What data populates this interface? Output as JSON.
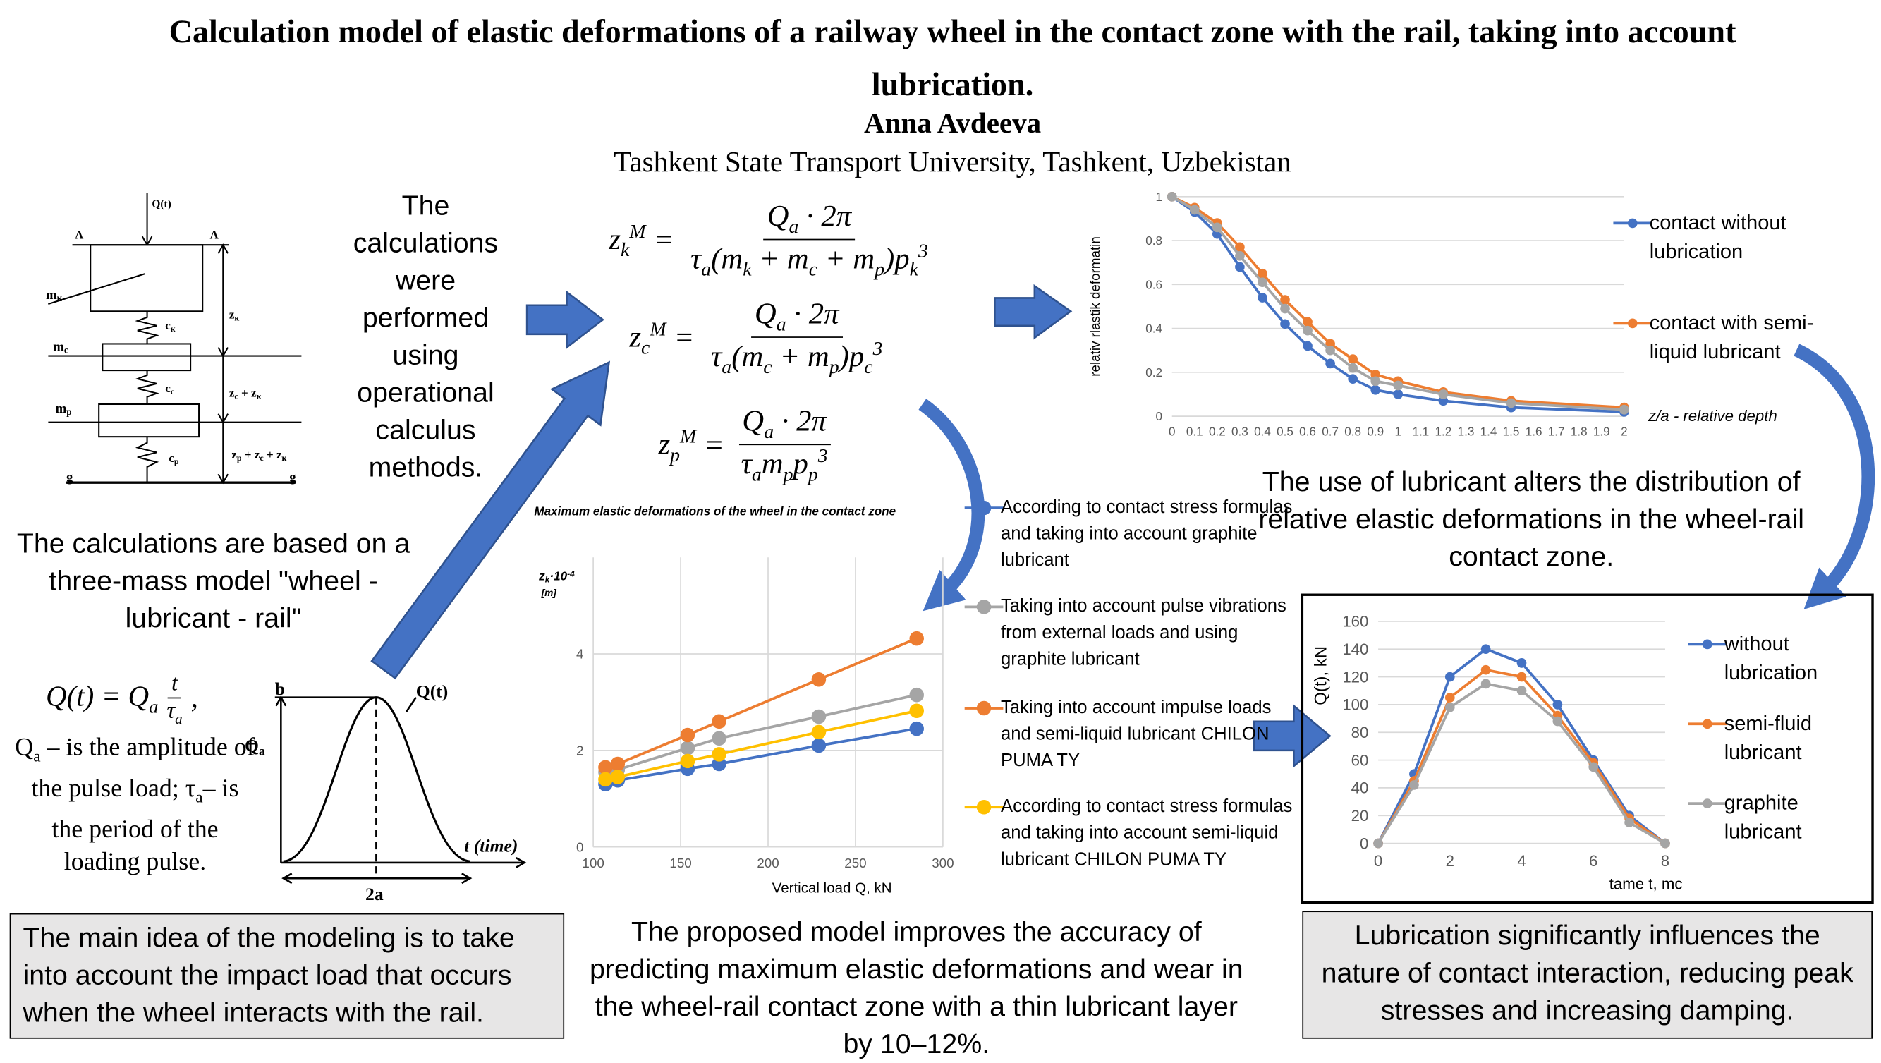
{
  "header": {
    "title": "Calculation model of elastic deformations of a railway wheel in the contact zone with the rail, taking into account lubrication.",
    "author": "Anna Avdeeva",
    "affiliation": "Tashkent State Transport University, Tashkent, Uzbekistan"
  },
  "diagram": {
    "labels": [
      [
        {
          "t": "Q(t)"
        }
      ],
      [
        {
          "t": "A"
        }
      ],
      [
        {
          "t": "A"
        }
      ],
      [
        {
          "t": "m"
        },
        {
          "t": "к",
          "s": "sub"
        }
      ],
      [
        {
          "t": "c"
        },
        {
          "t": "к",
          "s": "sub"
        }
      ],
      [
        {
          "t": "z"
        },
        {
          "t": "к",
          "s": "sub"
        }
      ],
      [
        {
          "t": "m"
        },
        {
          "t": "c",
          "s": "sub"
        }
      ],
      [
        {
          "t": "c"
        },
        {
          "t": "c",
          "s": "sub"
        }
      ],
      [
        {
          "t": "z"
        },
        {
          "t": "c",
          "s": "sub"
        },
        {
          "t": " + z"
        },
        {
          "t": "к",
          "s": "sub"
        }
      ],
      [
        {
          "t": "m"
        },
        {
          "t": "p",
          "s": "sub"
        }
      ],
      [
        {
          "t": "c"
        },
        {
          "t": "p",
          "s": "sub"
        }
      ],
      [
        {
          "t": "z"
        },
        {
          "t": "p",
          "s": "sub"
        },
        {
          "t": " + z"
        },
        {
          "t": "c",
          "s": "sub"
        },
        {
          "t": " + z"
        },
        {
          "t": "к",
          "s": "sub"
        }
      ],
      [
        {
          "t": "g"
        }
      ],
      [
        {
          "t": "g"
        }
      ]
    ]
  },
  "methods_note": "The calculations were performed using operational calculus methods.",
  "model_note": "The calculations are based on a three-mass model \"wheel - lubricant - rail\"",
  "formulas": [
    {
      "lhs": [
        {
          "t": "z"
        },
        {
          "t": "k",
          "s": "sub"
        },
        {
          "t": "M",
          "s": "sup"
        }
      ],
      "eq": "=",
      "num": [
        {
          "t": "Q"
        },
        {
          "t": "a",
          "s": "sub"
        },
        {
          "t": " · 2π"
        }
      ],
      "den": [
        {
          "t": "τ"
        },
        {
          "t": "a",
          "s": "sub"
        },
        {
          "t": "(m"
        },
        {
          "t": "k",
          "s": "sub"
        },
        {
          "t": " + m"
        },
        {
          "t": "c",
          "s": "sub"
        },
        {
          "t": " + m"
        },
        {
          "t": "p",
          "s": "sub"
        },
        {
          "t": ")p"
        },
        {
          "t": "k",
          "s": "sub"
        },
        {
          "t": "3",
          "s": "sup"
        }
      ]
    },
    {
      "lhs": [
        {
          "t": "z"
        },
        {
          "t": "c",
          "s": "sub"
        },
        {
          "t": "M",
          "s": "sup"
        }
      ],
      "eq": "=",
      "num": [
        {
          "t": "Q"
        },
        {
          "t": "a",
          "s": "sub"
        },
        {
          "t": " · 2π"
        }
      ],
      "den": [
        {
          "t": "τ"
        },
        {
          "t": "a",
          "s": "sub"
        },
        {
          "t": "(m"
        },
        {
          "t": "c",
          "s": "sub"
        },
        {
          "t": " + m"
        },
        {
          "t": "p",
          "s": "sub"
        },
        {
          "t": ")p"
        },
        {
          "t": "c",
          "s": "sub"
        },
        {
          "t": "3",
          "s": "sup"
        }
      ]
    },
    {
      "lhs": [
        {
          "t": "z"
        },
        {
          "t": "p",
          "s": "sub"
        },
        {
          "t": "M",
          "s": "sup"
        }
      ],
      "eq": "=",
      "num": [
        {
          "t": "Q"
        },
        {
          "t": "a",
          "s": "sub"
        },
        {
          "t": " · 2π"
        }
      ],
      "den": [
        {
          "t": "τ"
        },
        {
          "t": "a",
          "s": "sub"
        },
        {
          "t": "m"
        },
        {
          "t": "p",
          "s": "sub"
        },
        {
          "t": "p"
        },
        {
          "t": "p",
          "s": "sub"
        },
        {
          "t": "3",
          "s": "sup"
        }
      ]
    }
  ],
  "load_formula": {
    "lhs": [
      {
        "t": "Q(t) = Q"
      },
      {
        "t": "a",
        "s": "sub"
      }
    ],
    "num": [
      {
        "t": "t"
      }
    ],
    "den": [
      {
        "t": "τ"
      },
      {
        "t": "a",
        "s": "sub"
      }
    ],
    "tail": ",",
    "description": [
      {
        "t": "Q"
      },
      {
        "t": "a",
        "s": "sub"
      },
      {
        "t": " – is the amplitude of the pulse load; τ"
      },
      {
        "t": "a",
        "s": "sub"
      },
      {
        "t": "– is the period of the loading pulse."
      }
    ]
  },
  "pulse": {
    "labels": [
      "b",
      "Q(t)",
      [
        {
          "t": "Q"
        },
        {
          "t": "a",
          "s": "sub"
        }
      ],
      "t (time)",
      "2a"
    ]
  },
  "distribution_note": "The use of lubricant alters the distribution of relative elastic deformations in the wheel-rail contact zone.",
  "accuracy_note": "The proposed model improves the accuracy of predicting maximum elastic deformations and wear in the wheel-rail contact zone with a thin lubricant layer by 10–12%.",
  "boxes": {
    "main_idea": "The main idea of the modeling is to take into account the impact load that occurs when the wheel interacts with the rail.",
    "conclusion": "Lubrication significantly influences the nature of contact interaction, reducing peak stresses and increasing damping."
  },
  "chart_data": [
    {
      "type": "line",
      "x_label": "z/a  - relative depth",
      "y_label": "relativ rlastik deformatin",
      "x": [
        0,
        0.1,
        0.2,
        0.3,
        0.4,
        0.5,
        0.6,
        0.7,
        0.8,
        0.9,
        1,
        1.2,
        1.5,
        2
      ],
      "xlim": [
        0,
        2
      ],
      "xticks": [
        0,
        0.1,
        0.2,
        0.3,
        0.4,
        0.5,
        0.6,
        0.7,
        0.8,
        0.9,
        1,
        1.1,
        1.2,
        1.3,
        1.4,
        1.5,
        1.6,
        1.7,
        1.8,
        1.9,
        2
      ],
      "ylim": [
        0,
        1
      ],
      "yticks": [
        0,
        0.2,
        0.4,
        0.6,
        0.8,
        1
      ],
      "grid": "y",
      "series": [
        {
          "name": "contact without lubrication",
          "color": "#4472c4",
          "values": [
            1,
            0.93,
            0.83,
            0.68,
            0.54,
            0.42,
            0.32,
            0.24,
            0.17,
            0.12,
            0.1,
            0.07,
            0.04,
            0.02
          ]
        },
        {
          "name": "contact with semi-liquid lubricant",
          "color": "#ed7d31",
          "values": [
            1,
            0.95,
            0.88,
            0.77,
            0.65,
            0.53,
            0.43,
            0.33,
            0.26,
            0.19,
            0.16,
            0.11,
            0.07,
            0.04
          ]
        },
        {
          "color": "#a5a5a5",
          "values": [
            1,
            0.94,
            0.86,
            0.73,
            0.61,
            0.49,
            0.39,
            0.3,
            0.22,
            0.16,
            0.14,
            0.1,
            0.06,
            0.03
          ]
        }
      ]
    },
    {
      "type": "line",
      "title": "Maximum elastic deformations of the wheel in the contact zone",
      "x_label": "Vertical load Q, kN",
      "y_label": [
        {
          "t": "z"
        },
        {
          "t": "k",
          "s": "sub"
        },
        {
          "t": "·10"
        },
        {
          "t": "-4",
          "s": "sup"
        }
      ],
      "y_unit": "[m]",
      "x": [
        107,
        114,
        154,
        172,
        229,
        285
      ],
      "xlim": [
        100,
        300
      ],
      "xticks": [
        100,
        150,
        200,
        250,
        300
      ],
      "ylim": [
        0,
        6
      ],
      "yticks": [
        0,
        2,
        4
      ],
      "grid": "both",
      "series": [
        {
          "name": "According to contact stress formulas and taking into account graphite lubricant",
          "color": "#4472c4",
          "values": [
            1.3,
            1.38,
            1.62,
            1.72,
            2.1,
            2.45
          ]
        },
        {
          "name": "Taking into account pulse vibrations from external loads and using graphite lubricant",
          "color": "#a5a5a5",
          "values": [
            1.55,
            1.6,
            2.05,
            2.25,
            2.7,
            3.15
          ]
        },
        {
          "name": "Taking into account impulse loads and semi-liquid lubricant CHILON PUMA TY",
          "color": "#ed7d31",
          "values": [
            1.65,
            1.72,
            2.32,
            2.6,
            3.47,
            4.32
          ]
        },
        {
          "name": "According to contact stress formulas and taking into account semi-liquid lubricant CHILON PUMA TY",
          "color": "#ffc000",
          "values": [
            1.4,
            1.45,
            1.78,
            1.92,
            2.38,
            2.82
          ]
        }
      ]
    },
    {
      "type": "line",
      "x_label": "tame t, mc",
      "y_label": "Q(t), kN",
      "x": [
        0,
        1,
        2,
        3,
        4,
        5,
        6,
        7,
        8
      ],
      "xlim": [
        0,
        8
      ],
      "xticks": [
        0,
        2,
        4,
        6,
        8
      ],
      "ylim": [
        0,
        160
      ],
      "yticks": [
        0,
        20,
        40,
        60,
        80,
        100,
        120,
        140,
        160
      ],
      "grid": "y",
      "series": [
        {
          "name": "without lubrication",
          "color": "#4472c4",
          "values": [
            0,
            50,
            120,
            140,
            130,
            100,
            60,
            20,
            0
          ]
        },
        {
          "name": "semi-fluid lubricant",
          "color": "#ed7d31",
          "values": [
            0,
            45,
            105,
            125,
            120,
            92,
            58,
            18,
            0
          ]
        },
        {
          "name": "graphite lubricant",
          "color": "#a5a5a5",
          "values": [
            0,
            42,
            98,
            115,
            110,
            88,
            55,
            15,
            0
          ]
        }
      ]
    }
  ]
}
